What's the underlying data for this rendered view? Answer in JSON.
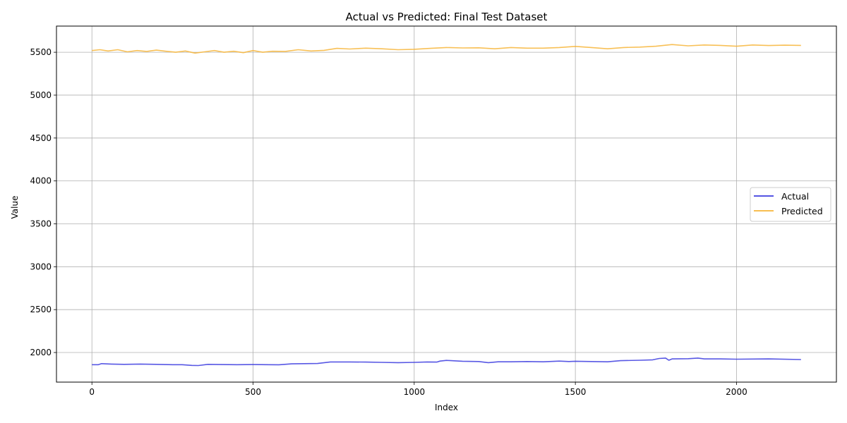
{
  "chart_data": {
    "type": "line",
    "title": "Actual vs Predicted: Final Test Dataset",
    "xlabel": "Index",
    "ylabel": "Value",
    "xlim": [
      -110,
      2310
    ],
    "ylim": [
      1655,
      5805
    ],
    "xticks": [
      0,
      500,
      1000,
      1500,
      2000
    ],
    "yticks": [
      2000,
      2500,
      3000,
      3500,
      4000,
      4500,
      5000,
      5500
    ],
    "grid": true,
    "legend_position": "center-right",
    "series": [
      {
        "name": "Actual",
        "color": "#3b3bdf",
        "x": [
          0,
          20,
          30,
          60,
          100,
          150,
          200,
          250,
          280,
          310,
          330,
          360,
          400,
          450,
          500,
          550,
          580,
          620,
          700,
          740,
          800,
          850,
          900,
          950,
          1000,
          1040,
          1070,
          1080,
          1100,
          1150,
          1200,
          1230,
          1260,
          1300,
          1350,
          1400,
          1450,
          1480,
          1500,
          1550,
          1600,
          1640,
          1700,
          1740,
          1760,
          1780,
          1790,
          1800,
          1850,
          1880,
          1900,
          1950,
          2000,
          2100,
          2200
        ],
        "y": [
          1858,
          1858,
          1870,
          1865,
          1862,
          1865,
          1862,
          1858,
          1858,
          1850,
          1848,
          1862,
          1860,
          1858,
          1860,
          1858,
          1857,
          1868,
          1872,
          1890,
          1890,
          1888,
          1885,
          1882,
          1885,
          1890,
          1888,
          1900,
          1908,
          1898,
          1895,
          1882,
          1892,
          1892,
          1895,
          1892,
          1900,
          1895,
          1898,
          1895,
          1892,
          1905,
          1910,
          1915,
          1930,
          1935,
          1910,
          1925,
          1928,
          1935,
          1925,
          1925,
          1922,
          1925,
          1918
        ]
      },
      {
        "name": "Predicted",
        "color": "#f7b538",
        "x": [
          0,
          25,
          50,
          80,
          110,
          140,
          170,
          200,
          230,
          260,
          290,
          320,
          350,
          380,
          410,
          440,
          470,
          500,
          530,
          560,
          600,
          640,
          680,
          720,
          760,
          800,
          850,
          900,
          950,
          1000,
          1050,
          1100,
          1150,
          1200,
          1250,
          1300,
          1350,
          1400,
          1450,
          1500,
          1550,
          1600,
          1650,
          1700,
          1750,
          1800,
          1850,
          1900,
          1950,
          2000,
          2050,
          2100,
          2150,
          2200
        ],
        "y": [
          5520,
          5530,
          5515,
          5530,
          5505,
          5520,
          5510,
          5525,
          5512,
          5500,
          5515,
          5490,
          5505,
          5520,
          5500,
          5512,
          5495,
          5520,
          5500,
          5512,
          5510,
          5530,
          5515,
          5522,
          5545,
          5538,
          5548,
          5540,
          5530,
          5535,
          5545,
          5555,
          5550,
          5552,
          5540,
          5555,
          5548,
          5548,
          5555,
          5568,
          5555,
          5540,
          5555,
          5560,
          5570,
          5590,
          5575,
          5585,
          5580,
          5570,
          5585,
          5578,
          5582,
          5580
        ]
      }
    ]
  }
}
